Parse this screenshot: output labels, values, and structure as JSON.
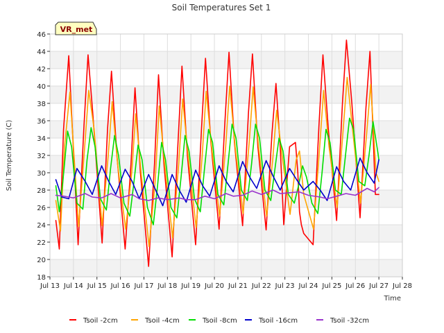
{
  "chart_data": {
    "type": "line",
    "title": "Soil Temperatures Set 1",
    "xlabel": "Time",
    "ylabel": "Soil Temperature (C)",
    "badge": "VR_met",
    "ylim": [
      18,
      46
    ],
    "yticks": [
      18,
      20,
      22,
      24,
      26,
      28,
      30,
      32,
      34,
      36,
      38,
      40,
      42,
      44,
      46
    ],
    "xlim": [
      13,
      28
    ],
    "xtick_values": [
      13,
      14,
      15,
      16,
      17,
      18,
      19,
      20,
      21,
      22,
      23,
      24,
      25,
      26,
      27,
      28
    ],
    "xtick_labels": [
      "Jul 13",
      "Jul 14",
      "Jul 15",
      "Jul 16",
      "Jul 17",
      "Jul 18",
      "Jul 19",
      "Jul 20",
      "Jul 21",
      "Jul 22",
      "Jul 23",
      "Jul 24",
      "Jul 25",
      "Jul 26",
      "Jul 27",
      "Jul 28"
    ],
    "grid": true,
    "legend_position": "bottom",
    "series": [
      {
        "name": "Tsoil -2cm",
        "color": "#ff0000",
        "x": [
          13.25,
          13.4,
          13.58,
          13.8,
          14.2,
          14.45,
          14.62,
          14.82,
          15.22,
          15.45,
          15.62,
          15.85,
          16.2,
          16.45,
          16.62,
          16.85,
          17.2,
          17.45,
          17.62,
          17.85,
          18.2,
          18.45,
          18.62,
          18.85,
          19.2,
          19.45,
          19.62,
          19.85,
          20.2,
          20.45,
          20.62,
          20.85,
          21.2,
          21.45,
          21.62,
          21.85,
          22.2,
          22.45,
          22.62,
          22.8,
          22.95,
          23.2,
          23.45,
          23.55,
          23.62,
          23.7,
          23.8,
          24.2,
          24.45,
          24.62,
          24.85,
          25.2,
          25.45,
          25.62,
          25.85,
          26.2,
          26.45,
          26.62,
          26.85,
          27.0
        ],
        "values": [
          24.5,
          21.2,
          35.0,
          43.5,
          21.7,
          35.5,
          43.6,
          37.0,
          21.9,
          35.0,
          41.7,
          32.0,
          21.2,
          31.0,
          39.8,
          30.0,
          19.2,
          31.0,
          41.3,
          31.0,
          20.3,
          33.5,
          42.3,
          32.0,
          21.7,
          35.0,
          43.2,
          33.5,
          23.5,
          36.0,
          43.9,
          33.5,
          23.9,
          37.0,
          43.7,
          33.0,
          23.4,
          34.5,
          40.3,
          33.0,
          24.0,
          33.0,
          33.5,
          30.0,
          25.5,
          24.0,
          23.0,
          21.7,
          35.5,
          43.6,
          35.0,
          24.5,
          38.0,
          45.3,
          38.0,
          24.8,
          37.5,
          44.0,
          27.5,
          27.5
        ]
      },
      {
        "name": "Tsoil -4cm",
        "color": "#ffa500",
        "x": [
          13.25,
          13.45,
          13.62,
          13.85,
          14.22,
          14.48,
          14.65,
          14.88,
          15.22,
          15.48,
          15.65,
          15.88,
          16.22,
          16.48,
          16.65,
          16.88,
          17.22,
          17.48,
          17.65,
          17.88,
          18.22,
          18.48,
          18.65,
          18.88,
          19.22,
          19.48,
          19.65,
          19.88,
          20.22,
          20.48,
          20.65,
          20.88,
          21.22,
          21.48,
          21.65,
          21.88,
          22.22,
          22.48,
          22.65,
          22.88,
          23.22,
          23.48,
          23.62,
          23.8,
          24.22,
          24.48,
          24.65,
          24.88,
          25.22,
          25.48,
          25.65,
          25.88,
          26.22,
          26.48,
          26.65,
          26.88,
          27.0
        ],
        "values": [
          26.8,
          23.3,
          33.0,
          39.3,
          23.8,
          33.0,
          39.5,
          35.0,
          23.9,
          32.0,
          38.2,
          31.0,
          23.5,
          30.0,
          36.8,
          30.0,
          21.5,
          29.0,
          37.7,
          31.0,
          22.5,
          31.0,
          38.5,
          32.0,
          23.7,
          32.0,
          39.4,
          33.0,
          25.0,
          33.0,
          40.0,
          33.0,
          25.3,
          33.5,
          39.9,
          33.0,
          25.0,
          31.5,
          37.2,
          32.0,
          25.2,
          31.5,
          32.5,
          27.5,
          23.5,
          33.0,
          39.5,
          33.0,
          26.0,
          35.0,
          41.0,
          35.0,
          26.5,
          34.5,
          40.2,
          30.0,
          29.0
        ]
      },
      {
        "name": "Tsoil -8cm",
        "color": "#00dd00",
        "x": [
          13.25,
          13.4,
          13.55,
          13.75,
          13.92,
          14.15,
          14.4,
          14.58,
          14.75,
          14.92,
          15.15,
          15.4,
          15.58,
          15.75,
          15.92,
          16.15,
          16.4,
          16.58,
          16.75,
          16.92,
          17.15,
          17.4,
          17.58,
          17.75,
          17.92,
          18.15,
          18.4,
          18.58,
          18.75,
          18.92,
          19.15,
          19.4,
          19.58,
          19.75,
          19.92,
          20.15,
          20.4,
          20.58,
          20.75,
          20.92,
          21.15,
          21.4,
          21.58,
          21.75,
          21.92,
          22.15,
          22.4,
          22.58,
          22.75,
          22.92,
          23.15,
          23.4,
          23.58,
          23.75,
          23.92,
          24.15,
          24.4,
          24.58,
          24.75,
          24.92,
          25.15,
          25.4,
          25.58,
          25.75,
          25.92,
          26.15,
          26.4,
          26.58,
          26.75,
          26.92,
          27.0
        ],
        "values": [
          28.5,
          25.5,
          29.0,
          34.8,
          33.0,
          26.5,
          25.8,
          31.5,
          35.2,
          33.0,
          27.0,
          25.7,
          30.5,
          34.3,
          32.0,
          26.5,
          25.0,
          29.0,
          33.2,
          31.5,
          26.0,
          24.0,
          28.5,
          33.5,
          31.5,
          26.0,
          24.8,
          29.5,
          34.3,
          32.5,
          27.0,
          25.5,
          30.5,
          35.0,
          33.5,
          27.5,
          26.3,
          31.0,
          35.6,
          34.0,
          28.0,
          26.8,
          31.0,
          35.6,
          34.0,
          28.0,
          26.8,
          30.5,
          34.0,
          32.5,
          27.5,
          26.5,
          28.5,
          30.8,
          29.5,
          26.5,
          25.3,
          30.0,
          35.0,
          33.5,
          28.0,
          27.5,
          32.0,
          36.3,
          35.0,
          29.0,
          28.5,
          32.0,
          35.9,
          33.0,
          31.5
        ]
      },
      {
        "name": "Tsoil -16cm",
        "color": "#0000cc",
        "x": [
          13.25,
          13.5,
          13.8,
          14.15,
          14.5,
          14.8,
          15.2,
          15.5,
          15.8,
          16.2,
          16.5,
          16.8,
          17.2,
          17.5,
          17.8,
          18.2,
          18.5,
          18.8,
          19.2,
          19.5,
          19.8,
          20.2,
          20.5,
          20.8,
          21.2,
          21.5,
          21.8,
          22.2,
          22.5,
          22.8,
          23.2,
          23.5,
          23.8,
          24.2,
          24.5,
          24.8,
          25.2,
          25.5,
          25.8,
          26.2,
          26.5,
          26.8,
          27.0
        ],
        "values": [
          29.2,
          27.2,
          27.0,
          30.5,
          29.0,
          27.5,
          30.8,
          29.0,
          27.5,
          30.4,
          29.0,
          27.0,
          29.8,
          28.0,
          26.2,
          29.8,
          28.0,
          26.6,
          30.3,
          28.5,
          27.3,
          30.8,
          29.0,
          27.8,
          31.3,
          29.5,
          28.2,
          31.4,
          29.6,
          28.0,
          30.5,
          29.2,
          28.0,
          29.0,
          28.0,
          26.8,
          30.7,
          29.0,
          28.0,
          31.7,
          30.0,
          28.8,
          31.5
        ]
      },
      {
        "name": "Tsoil -32cm",
        "color": "#9932cc",
        "x": [
          13.25,
          13.6,
          14.0,
          14.5,
          14.8,
          15.2,
          15.6,
          16.0,
          16.5,
          16.8,
          17.2,
          17.6,
          18.0,
          18.5,
          18.8,
          19.2,
          19.6,
          20.0,
          20.5,
          20.8,
          21.2,
          21.6,
          22.0,
          22.5,
          22.8,
          23.2,
          23.6,
          24.0,
          24.5,
          24.8,
          25.2,
          25.6,
          26.0,
          26.5,
          26.8,
          27.0
        ],
        "values": [
          27.4,
          27.3,
          27.1,
          27.6,
          27.2,
          27.1,
          27.6,
          27.1,
          27.5,
          27.0,
          26.8,
          27.1,
          26.9,
          27.1,
          26.9,
          26.9,
          27.3,
          27.0,
          27.6,
          27.3,
          27.4,
          27.9,
          27.5,
          28.0,
          27.6,
          27.7,
          27.8,
          27.4,
          27.2,
          27.0,
          27.3,
          27.6,
          27.4,
          28.2,
          27.8,
          28.3
        ]
      }
    ]
  }
}
